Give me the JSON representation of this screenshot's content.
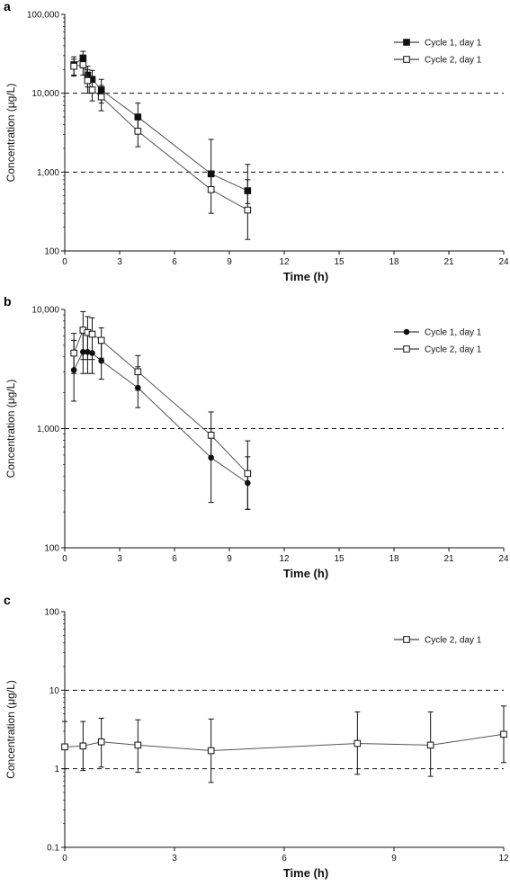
{
  "chart_data": [
    {
      "type": "line",
      "panel": "a",
      "xlabel": "Time (h)",
      "ylabel": "Concentration (μg/L)",
      "yscale": "log",
      "xlim": [
        0,
        24
      ],
      "ylim": [
        100,
        100000
      ],
      "xticks": [
        0,
        3,
        6,
        9,
        12,
        15,
        18,
        21,
        24
      ],
      "xtick_labels": [
        "0",
        "3",
        "6",
        "9",
        "12",
        "15",
        "18",
        "21",
        "24"
      ],
      "yticks": [
        100,
        1000,
        10000,
        100000
      ],
      "ytick_labels": [
        "100",
        "1,000",
        "10,000",
        "100,000"
      ],
      "reference_lines": [
        1000,
        10000
      ],
      "legend_position": "top-right",
      "series": [
        {
          "name": "Cycle 1, day 1",
          "marker": "filled-square",
          "x": [
            0.5,
            1.0,
            1.25,
            1.5,
            2.0,
            4.0,
            8.0,
            10.0
          ],
          "y": [
            23000,
            28000,
            17000,
            15000,
            11000,
            5000,
            950,
            580
          ],
          "err_low": [
            17000,
            21000,
            12000,
            10500,
            7500,
            3500,
            600,
            400
          ],
          "err_high": [
            29000,
            34000,
            22000,
            19500,
            15000,
            7500,
            2600,
            1250
          ]
        },
        {
          "name": "Cycle 2, day 1",
          "marker": "open-square",
          "x": [
            0.5,
            1.0,
            1.25,
            1.5,
            2.0,
            4.0,
            8.0,
            10.0
          ],
          "y": [
            22000,
            23000,
            14500,
            11000,
            9000,
            3300,
            600,
            330
          ],
          "err_low": [
            16500,
            17000,
            10000,
            8000,
            6000,
            2100,
            300,
            140
          ],
          "err_high": [
            27000,
            29000,
            20000,
            15000,
            12500,
            5000,
            900,
            800
          ]
        }
      ]
    },
    {
      "type": "line",
      "panel": "b",
      "xlabel": "Time (h)",
      "ylabel": "Concentration (μg/L)",
      "yscale": "log",
      "xlim": [
        0,
        24
      ],
      "ylim": [
        100,
        10000
      ],
      "xticks": [
        0,
        3,
        6,
        9,
        12,
        15,
        18,
        21,
        24
      ],
      "xtick_labels": [
        "0",
        "3",
        "6",
        "9",
        "12",
        "15",
        "18",
        "21",
        "24"
      ],
      "yticks": [
        100,
        1000,
        10000
      ],
      "ytick_labels": [
        "100",
        "1,000",
        "10,000"
      ],
      "reference_lines": [
        1000
      ],
      "legend_position": "top-right",
      "series": [
        {
          "name": "Cycle 1, day 1",
          "marker": "filled-circle",
          "x": [
            0.5,
            1.0,
            1.25,
            1.5,
            2.0,
            4.0,
            8.0,
            10.0
          ],
          "y": [
            3100,
            4400,
            4400,
            4300,
            3700,
            2200,
            570,
            350
          ],
          "err_low": [
            1700,
            2900,
            2900,
            2900,
            2600,
            1500,
            240,
            210
          ],
          "err_high": [
            5500,
            6400,
            6100,
            6000,
            5400,
            3300,
            1000,
            580
          ]
        },
        {
          "name": "Cycle 2, day 1",
          "marker": "open-square",
          "x": [
            0.5,
            1.0,
            1.25,
            1.5,
            2.0,
            4.0,
            8.0,
            10.0
          ],
          "y": [
            4300,
            6700,
            6400,
            6200,
            5500,
            3000,
            880,
            420
          ],
          "err_low": [
            2900,
            3800,
            3800,
            3800,
            3900,
            2100,
            580,
            210
          ],
          "err_high": [
            6300,
            9600,
            8700,
            8500,
            7000,
            4100,
            1380,
            790
          ]
        }
      ]
    },
    {
      "type": "line",
      "panel": "c",
      "xlabel": "Time (h)",
      "ylabel": "Concentration (μg/L)",
      "yscale": "log",
      "xlim": [
        0,
        12
      ],
      "ylim": [
        0.1,
        100
      ],
      "xticks": [
        0,
        3,
        6,
        9,
        12
      ],
      "xtick_labels": [
        "0",
        "3",
        "6",
        "9",
        "12"
      ],
      "yticks": [
        0.1,
        1,
        10,
        100
      ],
      "ytick_labels": [
        "0.1",
        "1",
        "10",
        "100"
      ],
      "reference_lines": [
        1,
        10
      ],
      "legend_position": "top-right",
      "series": [
        {
          "name": "Cycle 2, day 1",
          "marker": "open-square",
          "x": [
            0,
            0.5,
            1.0,
            2.0,
            4.0,
            8.0,
            10.0,
            12.0
          ],
          "y": [
            1.9,
            1.95,
            2.2,
            2.0,
            1.7,
            2.1,
            2.0,
            2.75
          ],
          "err_low": [
            1.0,
            0.95,
            1.05,
            0.9,
            0.67,
            0.85,
            0.8,
            1.2
          ],
          "err_high": [
            4.0,
            4.0,
            4.4,
            4.2,
            4.3,
            5.3,
            5.3,
            6.3
          ]
        }
      ]
    }
  ]
}
